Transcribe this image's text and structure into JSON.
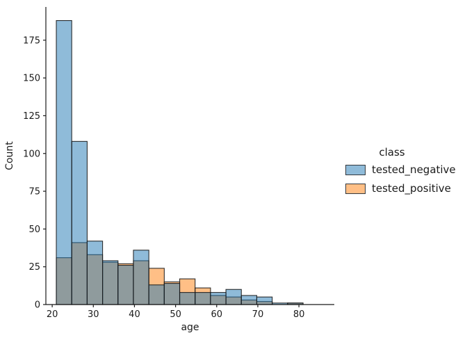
{
  "chart_data": {
    "type": "bar",
    "subtype": "layered-histogram",
    "title": "",
    "xlabel": "age",
    "ylabel": "Count",
    "bin_edges": [
      21,
      24.75,
      28.5,
      32.25,
      36,
      39.75,
      43.5,
      47.25,
      51,
      54.75,
      58.5,
      62.25,
      66,
      69.75,
      73.5,
      77.25,
      81
    ],
    "series": [
      {
        "name": "tested_negative",
        "color": "#1f77b4",
        "fill_alpha": 0.5,
        "edge_color": "#1a1a1a",
        "values": [
          188,
          108,
          42,
          29,
          26,
          36,
          13,
          14,
          8,
          8,
          8,
          10,
          6,
          5,
          1,
          1
        ]
      },
      {
        "name": "tested_positive",
        "color": "#ff7f0e",
        "fill_alpha": 0.5,
        "edge_color": "#1a1a1a",
        "values": [
          31,
          41,
          33,
          28,
          27,
          29,
          24,
          15,
          17,
          11,
          6,
          5,
          3,
          2,
          0,
          1
        ]
      }
    ],
    "x_ticks": [
      20,
      30,
      40,
      50,
      60,
      70,
      80
    ],
    "y_ticks": [
      0,
      25,
      50,
      75,
      100,
      125,
      150,
      175
    ],
    "xlim": [
      18.46,
      88.6
    ],
    "ylim": [
      0,
      197
    ],
    "grid": false,
    "legend": {
      "position": "right",
      "title": "class",
      "entries": [
        {
          "label": "tested_negative",
          "swatch": "#8fbbd9",
          "edge": "#33383d"
        },
        {
          "label": "tested_positive",
          "swatch": "#ffbf86",
          "edge": "#33383d"
        }
      ]
    }
  }
}
